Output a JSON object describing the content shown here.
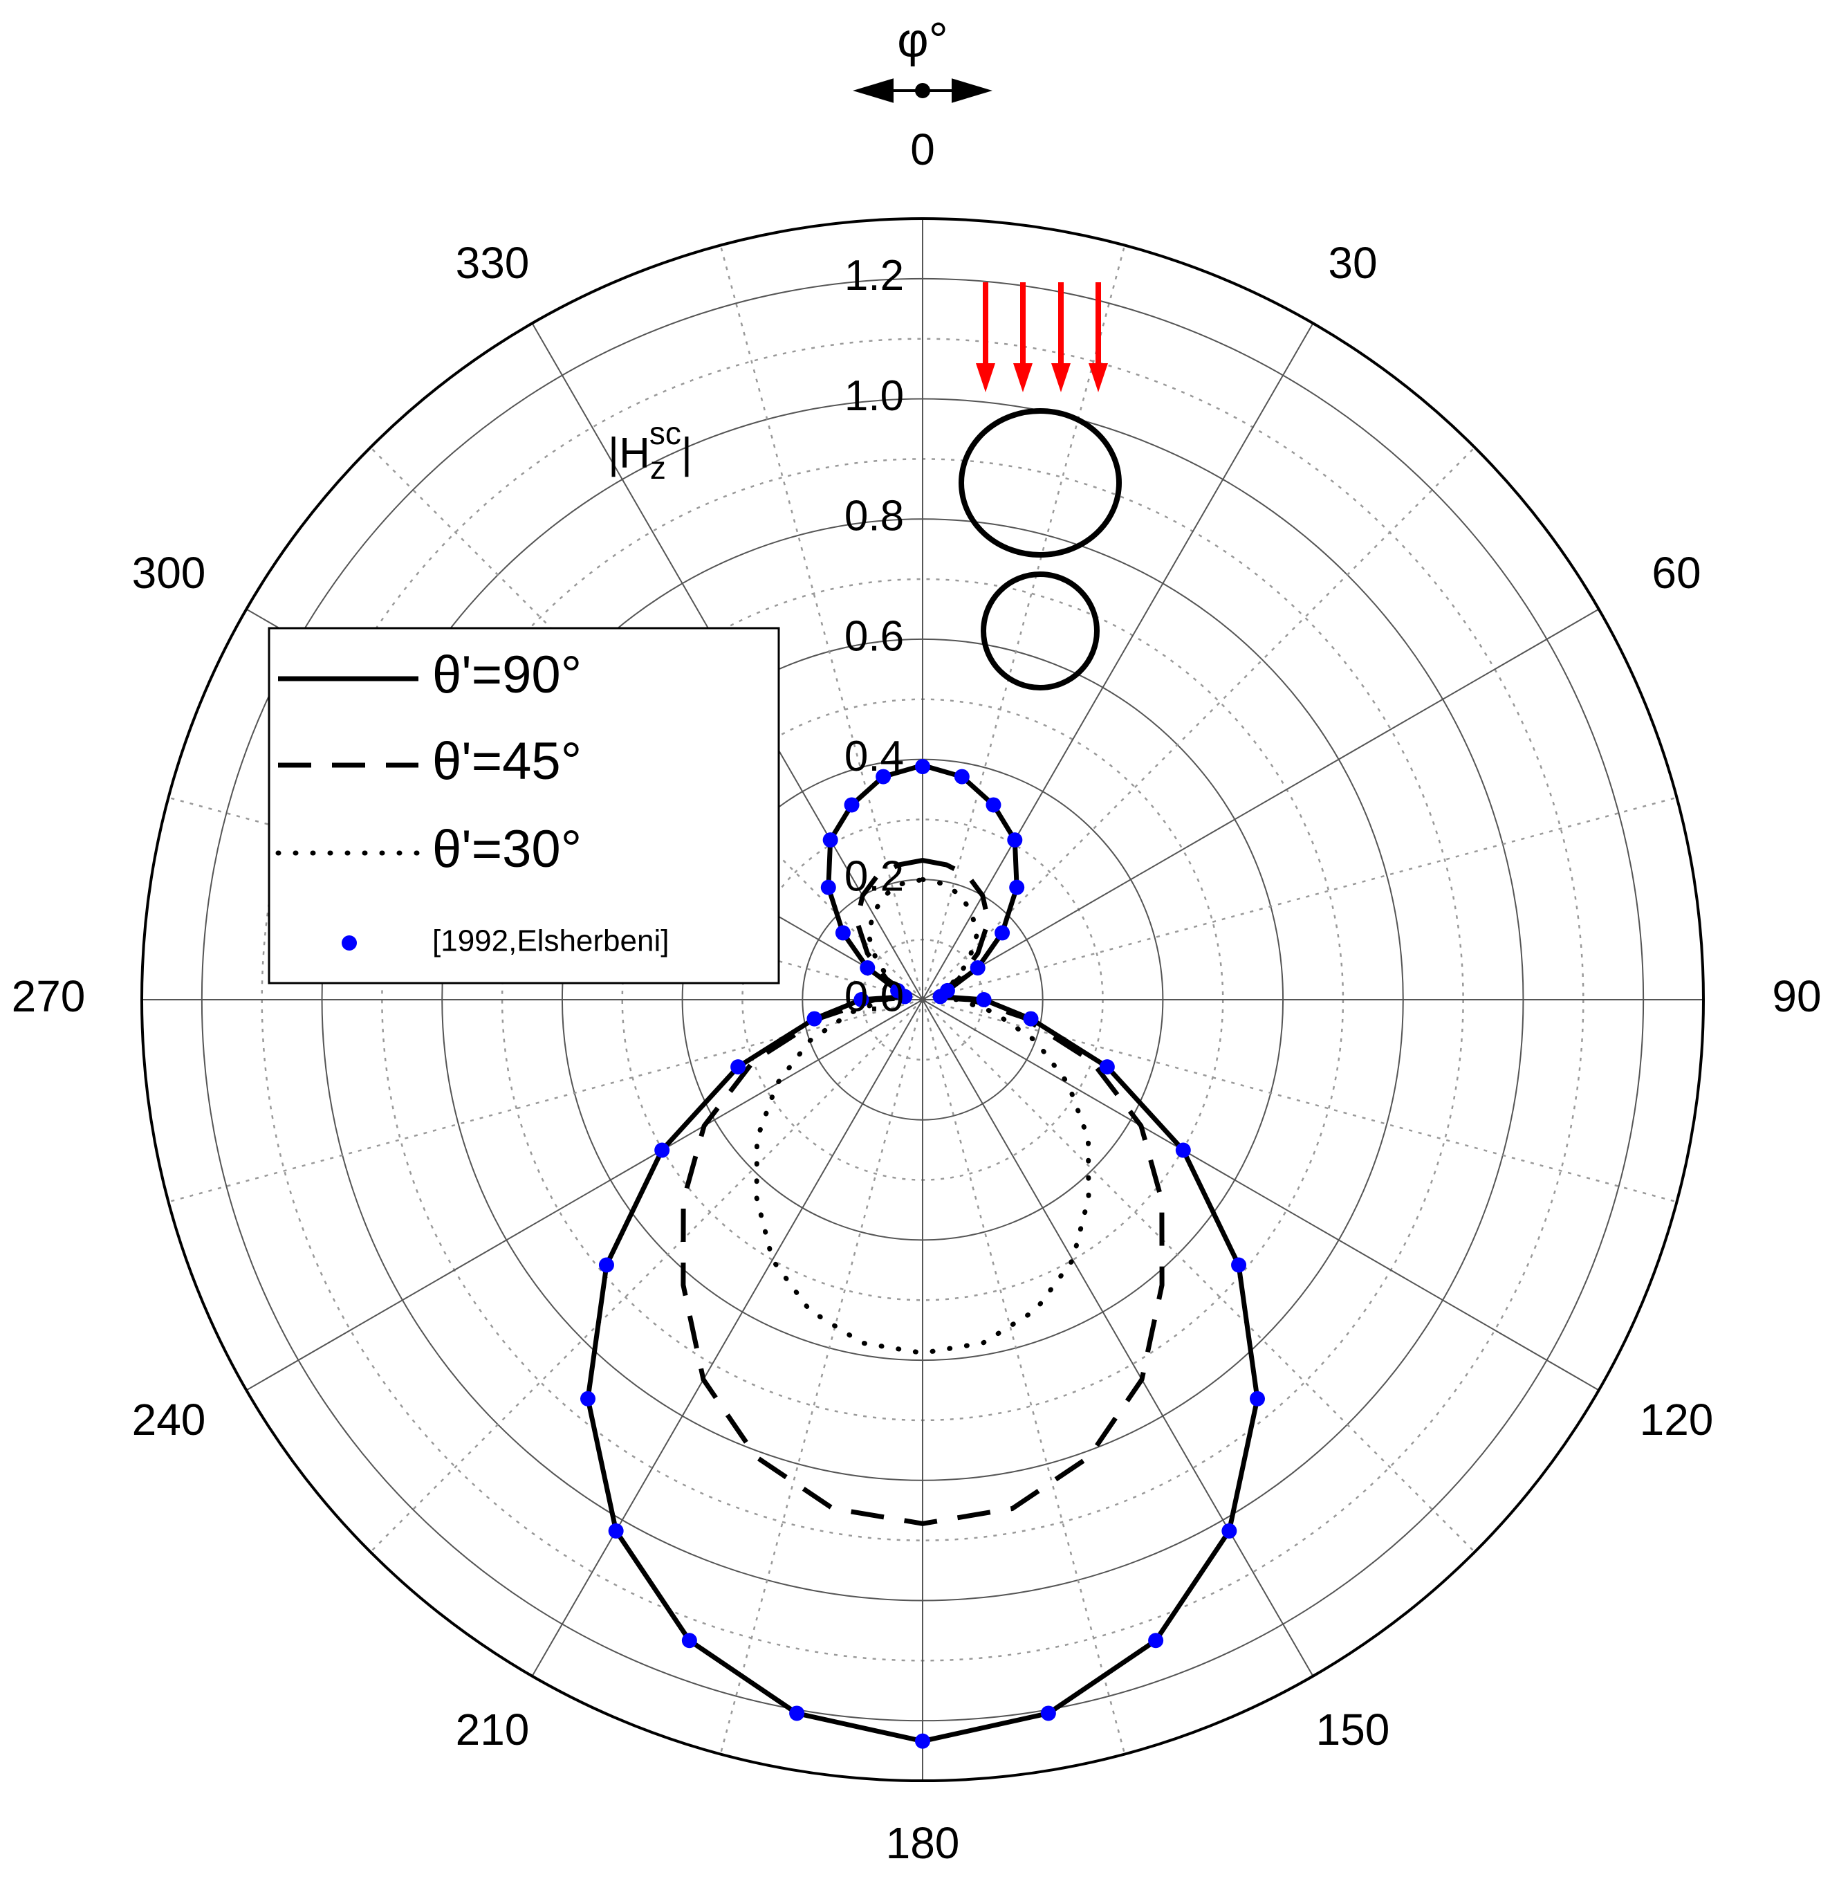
{
  "chart_data": {
    "type": "polar",
    "title": "φ°",
    "r_label": {
      "base": "|H",
      "sub": "z",
      "sup": "sc",
      "end": "|"
    },
    "theta": [
      0,
      10,
      20,
      30,
      40,
      50,
      60,
      70,
      80,
      90,
      100,
      110,
      120,
      130,
      140,
      150,
      160,
      170,
      180,
      190,
      200,
      210,
      220,
      230,
      240,
      250,
      260,
      270,
      280,
      290,
      300,
      310,
      320,
      330,
      340,
      350
    ],
    "rlim": [
      0,
      1.3
    ],
    "rticks": [
      {
        "value": 0,
        "label": "0.0"
      },
      0.2,
      0.4,
      0.6,
      0.8,
      {
        "value": 1,
        "label": "1.0"
      },
      1.2
    ],
    "rminorticks": [
      0.1,
      0.3,
      0.5,
      0.7,
      0.9,
      1.1
    ],
    "thetaticks": [
      0,
      30,
      60,
      90,
      120,
      150,
      180,
      210,
      240,
      270,
      300,
      330
    ],
    "thetaminorticks": [
      15,
      45,
      75,
      105,
      135,
      165,
      195,
      225,
      255,
      285,
      315,
      345
    ],
    "grid": true,
    "legend": "upper left",
    "series": [
      {
        "name": "θ'=90°",
        "color": "#000000",
        "style": "solid",
        "values": [
          0.39,
          0.377,
          0.345,
          0.307,
          0.244,
          0.173,
          0.106,
          0.044,
          0.03,
          0.102,
          0.183,
          0.327,
          0.501,
          0.687,
          0.867,
          1.021,
          1.135,
          1.206,
          1.234,
          1.206,
          1.135,
          1.021,
          0.867,
          0.687,
          0.501,
          0.327,
          0.183,
          0.102,
          0.03,
          0.044,
          0.106,
          0.173,
          0.244,
          0.307,
          0.345,
          0.377
        ]
      },
      {
        "name": "θ'=45°",
        "color": "#000000",
        "style": "dashed",
        "values": [
          0.232,
          0.228,
          0.22,
          0.2,
          0.17,
          0.12,
          0.07,
          0.03,
          0.02,
          0.08,
          0.17,
          0.3,
          0.42,
          0.52,
          0.62,
          0.73,
          0.81,
          0.86,
          0.872,
          0.86,
          0.81,
          0.73,
          0.62,
          0.52,
          0.42,
          0.3,
          0.17,
          0.08,
          0.02,
          0.03,
          0.07,
          0.12,
          0.17,
          0.2,
          0.22,
          0.228
        ]
      },
      {
        "name": "θ'=30°",
        "color": "#000000",
        "style": "dotted",
        "values": [
          0.2,
          0.196,
          0.185,
          0.165,
          0.14,
          0.1,
          0.06,
          0.025,
          0.015,
          0.06,
          0.12,
          0.2,
          0.28,
          0.36,
          0.43,
          0.5,
          0.55,
          0.58,
          0.588,
          0.58,
          0.55,
          0.5,
          0.43,
          0.36,
          0.28,
          0.2,
          0.12,
          0.06,
          0.015,
          0.025,
          0.06,
          0.1,
          0.14,
          0.165,
          0.185,
          0.196
        ]
      },
      {
        "name": "[1992,Elsherbeni]",
        "color": "#0000ff",
        "style": "markers",
        "values": [
          0.388,
          0.377,
          0.345,
          0.307,
          0.244,
          0.173,
          0.106,
          0.044,
          0.03,
          0.102,
          0.183,
          0.327,
          0.501,
          0.687,
          0.867,
          1.021,
          1.135,
          1.206,
          1.234,
          1.206,
          1.135,
          1.021,
          0.867,
          0.687,
          0.501,
          0.327,
          0.183,
          0.102,
          0.03,
          0.044,
          0.106,
          0.173,
          0.244,
          0.307,
          0.345,
          0.377
        ]
      }
    ]
  }
}
